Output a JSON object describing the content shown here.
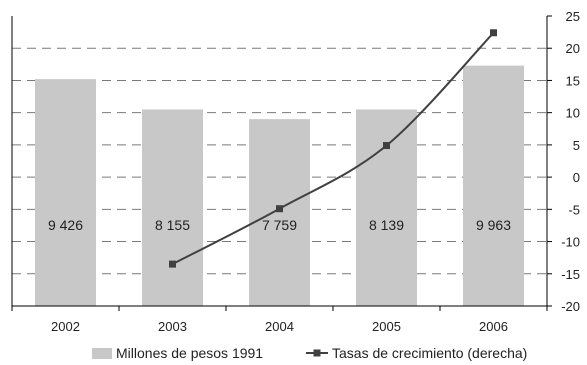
{
  "chart_data": {
    "type": "bar",
    "categories": [
      "2002",
      "2003",
      "2004",
      "2005",
      "2006"
    ],
    "series": [
      {
        "name": "Millones de pesos 1991",
        "type": "bar",
        "axis": "right",
        "axis_values": [
          15.2,
          10.5,
          9.0,
          10.5,
          17.3
        ],
        "labels": [
          "9 426",
          "8 155",
          "7 759",
          "8 139",
          "9 963"
        ],
        "color": "#c8c8c8"
      },
      {
        "name": "Tasas de crecimiento (derecha)",
        "type": "line",
        "axis": "right",
        "values": [
          null,
          -13.5,
          -4.9,
          4.9,
          22.4
        ],
        "color": "#404040"
      }
    ],
    "y_right": {
      "ticks": [
        "25",
        "20",
        "15",
        "10",
        "5",
        "0",
        "-5",
        "-10",
        "-15",
        "-20"
      ],
      "ylim": [
        -20,
        25
      ]
    },
    "grid": "dashed-horizontal",
    "legend": "bottom"
  }
}
